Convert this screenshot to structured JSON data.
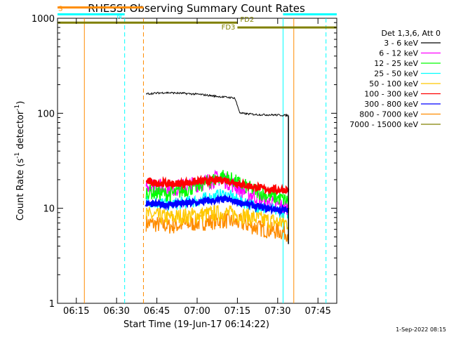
{
  "chart_data": {
    "type": "line",
    "title": "RHESSI Observing Summary Count Rates",
    "xlabel": "Start Time (19-Jun-17 06:14:22)",
    "ylabel_parts": [
      "Count Rate (s",
      "-1",
      " detector",
      "-1",
      ")"
    ],
    "scale": {
      "y": "log",
      "ylim": [
        1,
        1000
      ],
      "x_range": [
        "06:08",
        "07:52"
      ]
    },
    "x_ticks": [
      "06:15",
      "06:30",
      "06:45",
      "07:00",
      "07:15",
      "07:30",
      "07:45"
    ],
    "y_ticks": [
      "1",
      "10",
      "100",
      "1000"
    ],
    "legend_title": "Det 1,3,6, Att 0",
    "footer": "1-Sep-2022 08:15",
    "series": [
      {
        "name": "3 - 6 keV",
        "color": "#000000",
        "points": [
          [
            "06:41",
            160
          ],
          [
            "06:48",
            165
          ],
          [
            "06:55",
            162
          ],
          [
            "07:01",
            158
          ],
          [
            "07:08",
            150
          ],
          [
            "07:14",
            145
          ],
          [
            "07:16",
            100
          ],
          [
            "07:22",
            97
          ],
          [
            "07:29",
            96
          ],
          [
            "07:34",
            95
          ]
        ]
      },
      {
        "name": "6 - 12 keV",
        "color": "#ff00ff",
        "points": [
          [
            "06:41",
            18
          ],
          [
            "06:50",
            16
          ],
          [
            "07:00",
            18
          ],
          [
            "07:09",
            21
          ],
          [
            "07:16",
            16
          ],
          [
            "07:25",
            12
          ],
          [
            "07:34",
            10
          ]
        ]
      },
      {
        "name": "12 - 25 keV",
        "color": "#00ff00",
        "points": [
          [
            "06:41",
            15
          ],
          [
            "06:50",
            14
          ],
          [
            "07:00",
            17
          ],
          [
            "07:10",
            22
          ],
          [
            "07:16",
            18
          ],
          [
            "07:25",
            14
          ],
          [
            "07:34",
            12
          ]
        ]
      },
      {
        "name": "25 - 50 keV",
        "color": "#00ffff",
        "points": [
          [
            "06:41",
            12
          ],
          [
            "06:50",
            11
          ],
          [
            "07:00",
            12
          ],
          [
            "07:10",
            14
          ],
          [
            "07:16",
            12
          ],
          [
            "07:25",
            10
          ],
          [
            "07:34",
            9
          ]
        ]
      },
      {
        "name": "50 - 100 keV",
        "color": "#ffc800",
        "points": [
          [
            "06:41",
            8.5
          ],
          [
            "06:50",
            8
          ],
          [
            "07:00",
            8.5
          ],
          [
            "07:10",
            9
          ],
          [
            "07:16",
            8.5
          ],
          [
            "07:25",
            7.5
          ],
          [
            "07:34",
            7
          ]
        ]
      },
      {
        "name": "100 - 300 keV",
        "color": "#ff0000",
        "points": [
          [
            "06:41",
            19
          ],
          [
            "06:50",
            18
          ],
          [
            "07:00",
            19
          ],
          [
            "07:10",
            20
          ],
          [
            "07:16",
            18
          ],
          [
            "07:25",
            16
          ],
          [
            "07:34",
            15.5
          ]
        ]
      },
      {
        "name": "300 - 800 keV",
        "color": "#0000ff",
        "points": [
          [
            "06:41",
            11
          ],
          [
            "06:50",
            11
          ],
          [
            "07:00",
            11.5
          ],
          [
            "07:10",
            12.5
          ],
          [
            "07:16",
            11.5
          ],
          [
            "07:25",
            10
          ],
          [
            "07:34",
            9.5
          ]
        ]
      },
      {
        "name": "800 - 7000 keV",
        "color": "#ff8c00",
        "points": [
          [
            "06:41",
            7
          ],
          [
            "06:50",
            6.5
          ],
          [
            "07:00",
            7
          ],
          [
            "07:10",
            7.5
          ],
          [
            "07:16",
            7
          ],
          [
            "07:25",
            6
          ],
          [
            "07:34",
            5.5
          ]
        ]
      },
      {
        "name": "7000 - 15000 keV",
        "color": "#808000",
        "points": []
      }
    ],
    "flag_bars": [
      {
        "label": "S",
        "color": "#ff8c00",
        "y": 1300,
        "start": "06:08",
        "end": "06:40"
      },
      {
        "label": "N",
        "color": "#00ffff",
        "y": 1100,
        "start": "06:08",
        "end": "06:33"
      },
      {
        "label": "",
        "color": "#00ffff",
        "y": 1100,
        "start": "07:32",
        "end": "07:52"
      },
      {
        "label": "FD2",
        "color": "#808000",
        "y": 900,
        "start": "06:08",
        "end": "07:15"
      },
      {
        "label": "FD3",
        "color": "#808000",
        "y": 800,
        "start": "07:15",
        "end": "07:52"
      }
    ],
    "vertical_markers": [
      {
        "time": "06:18",
        "color": "#ff8c00",
        "style": "solid"
      },
      {
        "time": "06:33",
        "color": "#00ffff",
        "style": "dashed"
      },
      {
        "time": "06:40",
        "color": "#ff8c00",
        "style": "dashed"
      },
      {
        "time": "07:32",
        "color": "#00ffff",
        "style": "solid"
      },
      {
        "time": "07:36",
        "color": "#ff8c00",
        "style": "solid"
      },
      {
        "time": "07:48",
        "color": "#00ffff",
        "style": "dashed"
      }
    ]
  }
}
